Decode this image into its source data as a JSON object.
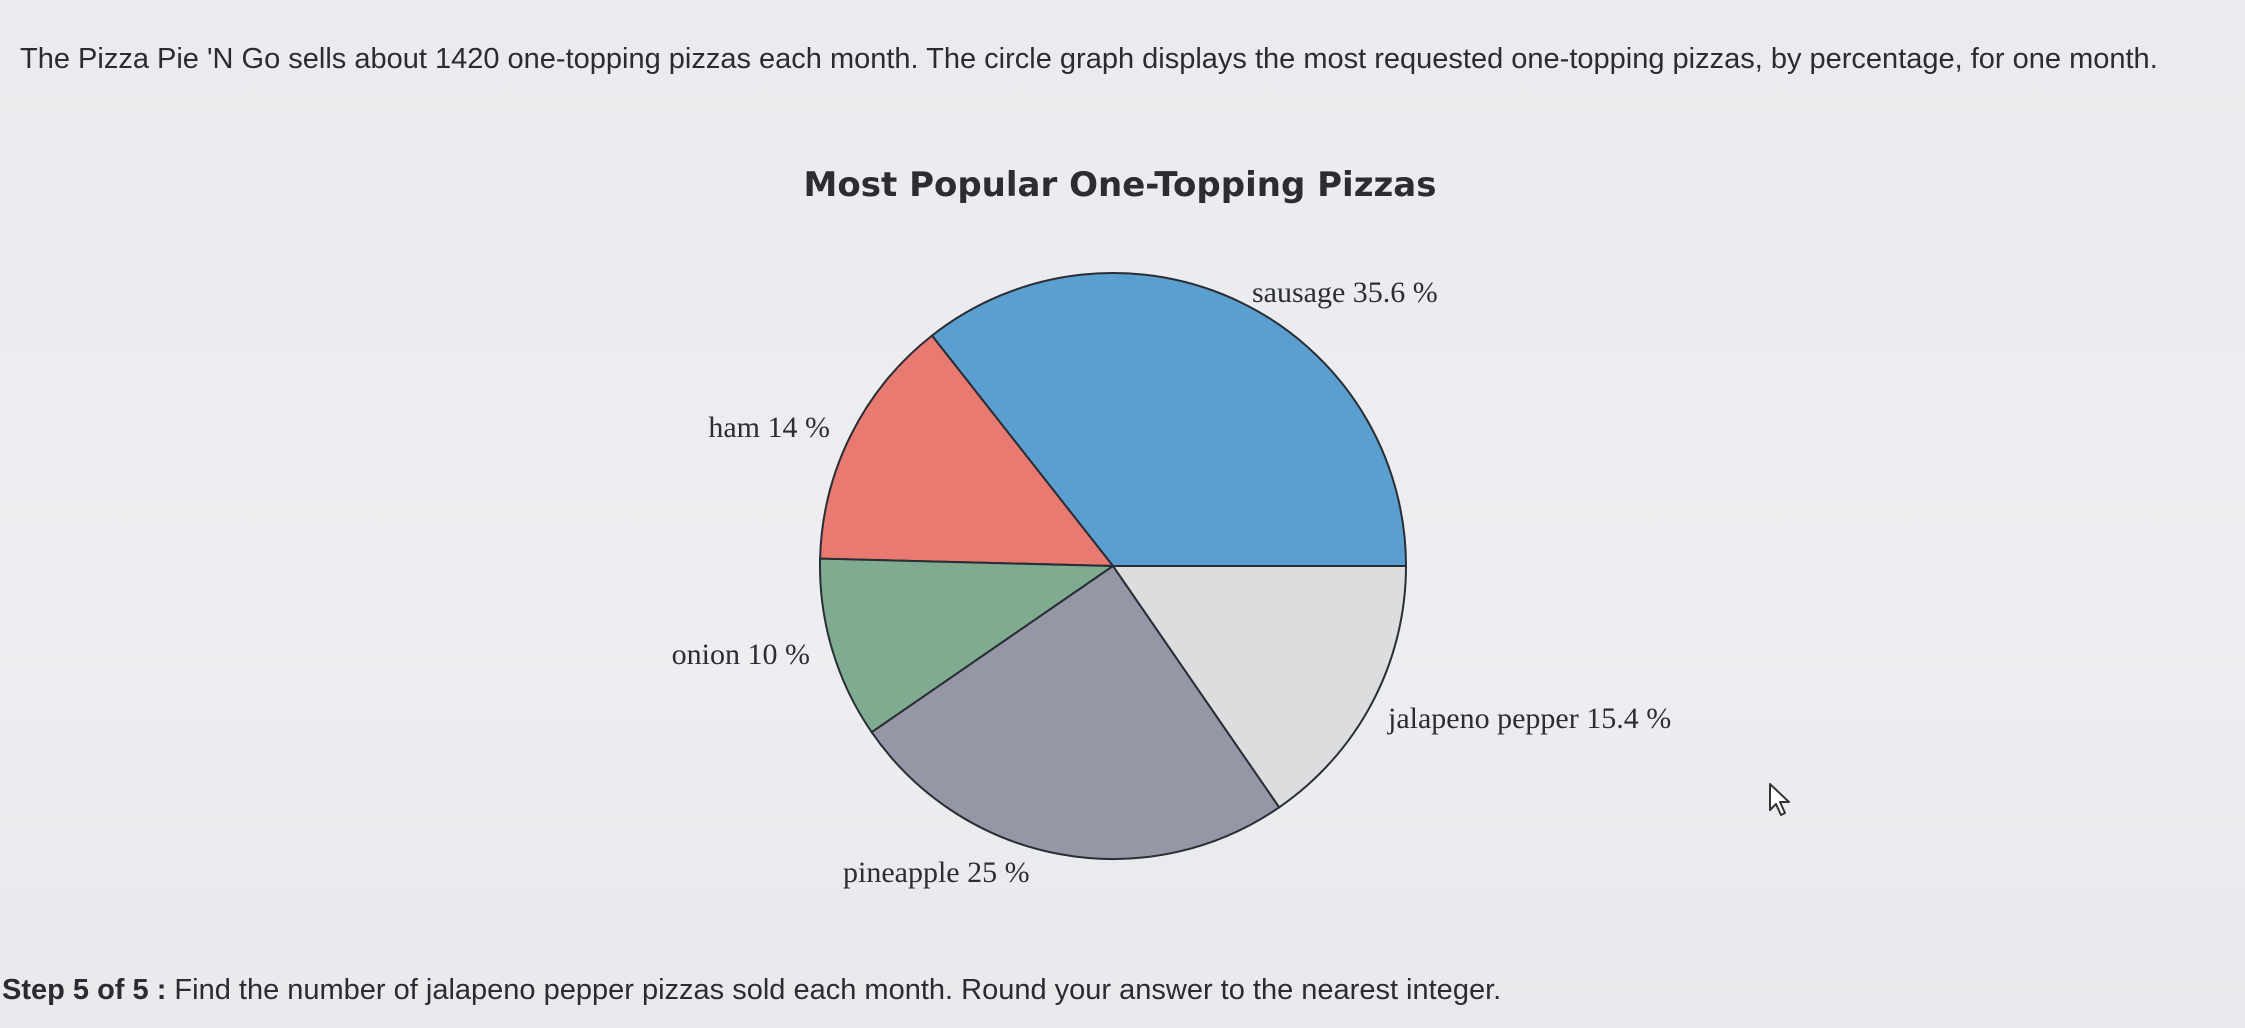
{
  "problem": {
    "text": "The Pizza Pie 'N Go sells about 1420 one-topping pizzas each month. The circle graph displays the most requested one-topping pizzas, by percentage, for one month."
  },
  "step": {
    "label": "Step 5 of 5 :",
    "question": "Find the number of jalapeno pepper pizzas sold each month. Round your answer to the nearest integer."
  },
  "chart_data": {
    "type": "pie",
    "title": "Most Popular One-Topping Pizzas",
    "start_angle_deg": 0,
    "direction": "counterclockwise",
    "slices": [
      {
        "name": "sausage",
        "value": 35.6,
        "label": "sausage 35.6 %",
        "color": "#5a9fd0"
      },
      {
        "name": "ham",
        "value": 14,
        "label": "ham 14 %",
        "color": "#e87a72"
      },
      {
        "name": "onion",
        "value": 10,
        "label": "onion 10 %",
        "color": "#7fac91"
      },
      {
        "name": "pineapple",
        "value": 25,
        "label": "pineapple 25 %",
        "color": "#9697a6"
      },
      {
        "name": "jalapeno pepper",
        "value": 15.4,
        "label": "jalapeno pepper 15.4 %",
        "color": "#dcdddf"
      }
    ]
  },
  "icons": {
    "cursor": "mouse-pointer-icon"
  }
}
